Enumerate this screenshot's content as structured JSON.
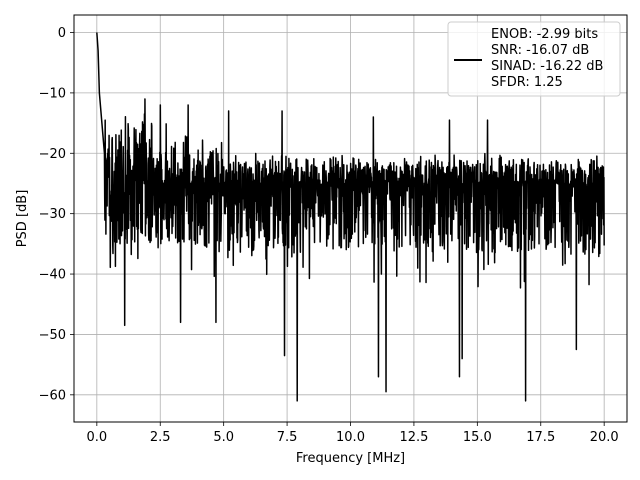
{
  "chart_data": {
    "type": "line",
    "title": "",
    "xlabel": "Frequency [MHz]",
    "ylabel": "PSD [dB]",
    "xlim": [
      -0.9,
      20.9
    ],
    "ylim": [
      -64.5,
      2.9
    ],
    "x_ticks": [
      0.0,
      2.5,
      5.0,
      7.5,
      10.0,
      12.5,
      15.0,
      17.5,
      20.0
    ],
    "x_tick_labels": [
      "0.0",
      "2.5",
      "5.0",
      "7.5",
      "10.0",
      "12.5",
      "15.0",
      "17.5",
      "20.0"
    ],
    "y_ticks": [
      0,
      -10,
      -20,
      -30,
      -40,
      -50,
      -60
    ],
    "y_tick_labels": [
      "0",
      "−10",
      "−20",
      "−30",
      "−40",
      "−50",
      "−60"
    ],
    "grid": true,
    "legend_position": "top-right",
    "series": [
      {
        "name": "ENOB: -2.99 bits\nSNR: -16.07 dB\nSINAD: -16.22 dB\nSFDR: 1.25",
        "color": "#000000",
        "x_range": [
          0,
          20
        ],
        "baseline_db": -25,
        "envelope_top_db": [
          -10,
          -20
        ],
        "envelope_bottom_db": [
          -35,
          -37
        ],
        "low_frequency_rolloff": [
          {
            "x": 0.0,
            "y": 0.0
          },
          {
            "x": 0.05,
            "y": -3
          },
          {
            "x": 0.1,
            "y": -10
          },
          {
            "x": 0.2,
            "y": -15
          },
          {
            "x": 0.3,
            "y": -20
          }
        ],
        "notable_dips": [
          {
            "x": 1.1,
            "y": -48.5
          },
          {
            "x": 3.3,
            "y": -48
          },
          {
            "x": 4.7,
            "y": -48
          },
          {
            "x": 7.4,
            "y": -53.5
          },
          {
            "x": 7.9,
            "y": -61
          },
          {
            "x": 11.1,
            "y": -57
          },
          {
            "x": 11.4,
            "y": -59.5
          },
          {
            "x": 14.3,
            "y": -57
          },
          {
            "x": 14.4,
            "y": -54
          },
          {
            "x": 16.9,
            "y": -61
          },
          {
            "x": 18.9,
            "y": -52.5
          }
        ],
        "notable_peaks": [
          {
            "x": 1.9,
            "y": -11
          },
          {
            "x": 2.5,
            "y": -12
          },
          {
            "x": 3.6,
            "y": -12
          },
          {
            "x": 5.2,
            "y": -13
          },
          {
            "x": 7.3,
            "y": -13
          },
          {
            "x": 10.9,
            "y": -14
          },
          {
            "x": 13.9,
            "y": -14.5
          },
          {
            "x": 15.4,
            "y": -14.5
          }
        ]
      }
    ]
  }
}
